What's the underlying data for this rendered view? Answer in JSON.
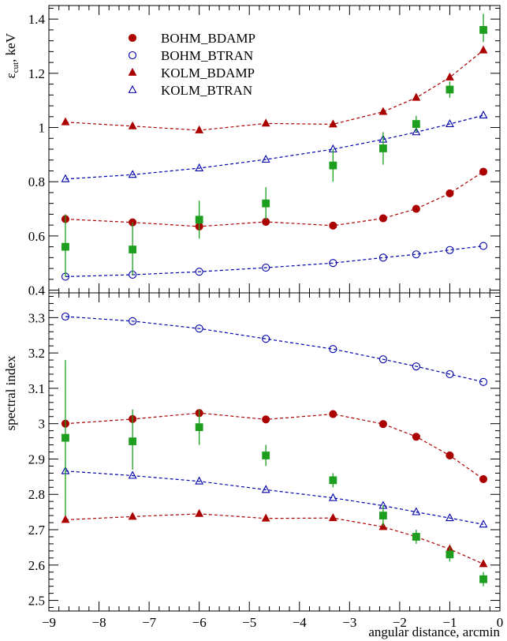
{
  "chart_data": [
    {
      "panel": "top",
      "type": "scatter",
      "ylabel": {
        "main": "ε",
        "sub": "cut",
        "rest": ", keV"
      },
      "ylim": [
        0.39,
        1.45
      ],
      "xlim": [
        -9,
        0
      ],
      "yticks": [
        0.4,
        0.6,
        0.8,
        1,
        1.2,
        1.4
      ],
      "yticklabels": [
        "0.4",
        "0.6",
        "0.8",
        "1",
        "1.2",
        "1.4"
      ],
      "legend": {
        "placement": "top-left",
        "entries": [
          "BOHM_BDAMP",
          "BOHM_BTRAN",
          "KOLM_BDAMP",
          "KOLM_BTRAN"
        ]
      },
      "series": [
        {
          "name": "BOHM_BDAMP",
          "marker": "filled-circle",
          "color": "#aa0000",
          "line": "dashed",
          "x": [
            -8.67,
            -7.33,
            -6.0,
            -4.67,
            -3.33,
            -2.33,
            -1.67,
            -1.0,
            -0.33
          ],
          "y": [
            0.662,
            0.65,
            0.635,
            0.652,
            0.638,
            0.665,
            0.7,
            0.757,
            0.837
          ]
        },
        {
          "name": "BOHM_BTRAN",
          "marker": "open-circle",
          "color": "#0000aa",
          "line": "dashed",
          "x": [
            -8.67,
            -7.33,
            -6.0,
            -4.67,
            -3.33,
            -2.33,
            -1.67,
            -1.0,
            -0.33
          ],
          "y": [
            0.45,
            0.457,
            0.468,
            0.483,
            0.5,
            0.52,
            0.532,
            0.548,
            0.563
          ]
        },
        {
          "name": "KOLM_BDAMP",
          "marker": "filled-triangle",
          "color": "#aa0000",
          "line": "dashed",
          "x": [
            -8.67,
            -7.33,
            -6.0,
            -4.67,
            -3.33,
            -2.33,
            -1.67,
            -1.0,
            -0.33
          ],
          "y": [
            1.02,
            1.005,
            0.99,
            1.015,
            1.012,
            1.058,
            1.11,
            1.185,
            1.285
          ]
        },
        {
          "name": "KOLM_BTRAN",
          "marker": "open-triangle",
          "color": "#0000aa",
          "line": "dashed",
          "x": [
            -8.67,
            -7.33,
            -6.0,
            -4.67,
            -3.33,
            -2.33,
            -1.67,
            -1.0,
            -0.33
          ],
          "y": [
            0.81,
            0.826,
            0.85,
            0.882,
            0.92,
            0.956,
            0.983,
            1.013,
            1.045
          ]
        },
        {
          "marker": "filled-square",
          "color": "#1e9e1e",
          "line": "none",
          "x": [
            -8.67,
            -7.33,
            -6.0,
            -4.67,
            -3.33,
            -2.33,
            -1.67,
            -1.0,
            -0.33
          ],
          "y": [
            0.56,
            0.55,
            0.66,
            0.72,
            0.86,
            0.923,
            1.013,
            1.14,
            1.36
          ],
          "yerr_low": [
            0.11,
            0.095,
            0.07,
            0.06,
            0.06,
            0.06,
            0.03,
            0.03,
            0.045
          ],
          "yerr_high": [
            0.12,
            0.1,
            0.07,
            0.06,
            0.06,
            0.06,
            0.03,
            0.03,
            0.06
          ]
        }
      ]
    },
    {
      "panel": "bottom",
      "type": "scatter",
      "xlabel": "angular distance, arcmin",
      "ylabel": "spectral index",
      "xlim": [
        -9,
        0
      ],
      "ylim": [
        2.47,
        3.37
      ],
      "xticks": [
        -9,
        -8,
        -7,
        -6,
        -5,
        -4,
        -3,
        -2,
        -1,
        0
      ],
      "xticklabels": [
        "−9",
        "−8",
        "−7",
        "−6",
        "−5",
        "−4",
        "−3",
        "−2",
        "−1",
        "0"
      ],
      "yticks": [
        2.5,
        2.6,
        2.7,
        2.8,
        2.9,
        3,
        3.1,
        3.2,
        3.3
      ],
      "yticklabels": [
        "2.5",
        "2.6",
        "2.7",
        "2.8",
        "2.9",
        "3",
        "3.1",
        "3.2",
        "3.3"
      ],
      "series": [
        {
          "name": "BOHM_BDAMP",
          "marker": "filled-circle",
          "color": "#aa0000",
          "line": "dashed",
          "x": [
            -8.67,
            -7.33,
            -6.0,
            -4.67,
            -3.33,
            -2.33,
            -1.67,
            -1.0,
            -0.33
          ],
          "y": [
            3.0,
            3.013,
            3.03,
            3.012,
            3.027,
            2.999,
            2.963,
            2.91,
            2.843
          ]
        },
        {
          "name": "BOHM_BTRAN",
          "marker": "open-circle",
          "color": "#0000aa",
          "line": "dashed",
          "x": [
            -8.67,
            -7.33,
            -6.0,
            -4.67,
            -3.33,
            -2.33,
            -1.67,
            -1.0,
            -0.33
          ],
          "y": [
            3.303,
            3.29,
            3.269,
            3.24,
            3.211,
            3.182,
            3.162,
            3.14,
            3.118
          ]
        },
        {
          "name": "KOLM_BDAMP",
          "marker": "filled-triangle",
          "color": "#aa0000",
          "line": "dashed",
          "x": [
            -8.67,
            -7.33,
            -6.0,
            -4.67,
            -3.33,
            -2.33,
            -1.67,
            -1.0,
            -0.33
          ],
          "y": [
            2.728,
            2.737,
            2.745,
            2.732,
            2.733,
            2.708,
            2.68,
            2.645,
            2.603
          ]
        },
        {
          "name": "KOLM_BTRAN",
          "marker": "open-triangle",
          "color": "#0000aa",
          "line": "dashed",
          "x": [
            -8.67,
            -7.33,
            -6.0,
            -4.67,
            -3.33,
            -2.33,
            -1.67,
            -1.0,
            -0.33
          ],
          "y": [
            2.866,
            2.853,
            2.837,
            2.813,
            2.79,
            2.768,
            2.75,
            2.733,
            2.715
          ]
        },
        {
          "marker": "filled-square",
          "color": "#1e9e1e",
          "line": "none",
          "x": [
            -8.67,
            -7.33,
            -6.0,
            -4.67,
            -3.33,
            -2.33,
            -1.67,
            -1.0,
            -0.33
          ],
          "y": [
            2.96,
            2.95,
            2.99,
            2.91,
            2.84,
            2.74,
            2.68,
            2.63,
            2.56
          ],
          "yerr_low": [
            0.22,
            0.08,
            0.05,
            0.03,
            0.02,
            0.03,
            0.02,
            0.02,
            0.02
          ],
          "yerr_high": [
            0.22,
            0.09,
            0.05,
            0.03,
            0.02,
            0.03,
            0.02,
            0.02,
            0.02
          ]
        }
      ]
    }
  ]
}
